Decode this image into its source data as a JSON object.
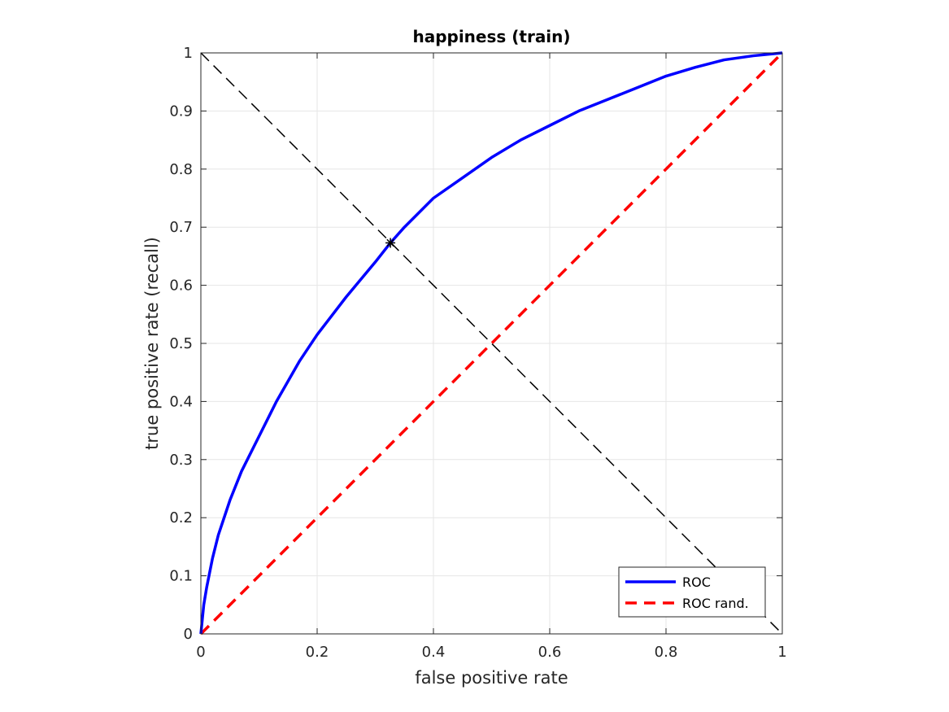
{
  "chart_data": {
    "type": "line",
    "title": "happiness (train)",
    "xlabel": "false positive rate",
    "ylabel": "true positive rate (recall)",
    "xlim": [
      0,
      1
    ],
    "ylim": [
      0,
      1
    ],
    "grid": true,
    "x_ticks": [
      "0",
      "0.2",
      "0.4",
      "0.6",
      "0.8",
      "1"
    ],
    "y_ticks": [
      "0",
      "0.1",
      "0.2",
      "0.3",
      "0.4",
      "0.5",
      "0.6",
      "0.7",
      "0.8",
      "0.9",
      "1"
    ],
    "legend_position": "bottom-right",
    "series": [
      {
        "name": "ROC",
        "color": "#0000ff",
        "style": "solid",
        "x": [
          0,
          0.005,
          0.01,
          0.02,
          0.03,
          0.04,
          0.05,
          0.07,
          0.1,
          0.13,
          0.17,
          0.2,
          0.25,
          0.3,
          0.326,
          0.35,
          0.4,
          0.45,
          0.5,
          0.55,
          0.6,
          0.65,
          0.7,
          0.75,
          0.8,
          0.85,
          0.9,
          0.95,
          1
        ],
        "y": [
          0,
          0.05,
          0.08,
          0.13,
          0.17,
          0.2,
          0.23,
          0.28,
          0.34,
          0.4,
          0.47,
          0.515,
          0.58,
          0.64,
          0.673,
          0.7,
          0.75,
          0.785,
          0.82,
          0.85,
          0.875,
          0.9,
          0.92,
          0.94,
          0.96,
          0.975,
          0.988,
          0.995,
          1
        ]
      },
      {
        "name": "ROC rand.",
        "color": "#ff0000",
        "style": "dashed",
        "x": [
          0,
          1
        ],
        "y": [
          0,
          1
        ]
      }
    ],
    "reference_line": {
      "color": "#000000",
      "style": "dashed",
      "x": [
        0,
        1
      ],
      "y": [
        1,
        0
      ]
    },
    "marker": {
      "symbol": "asterisk",
      "color": "#000000",
      "x": 0.326,
      "y": 0.673
    }
  }
}
